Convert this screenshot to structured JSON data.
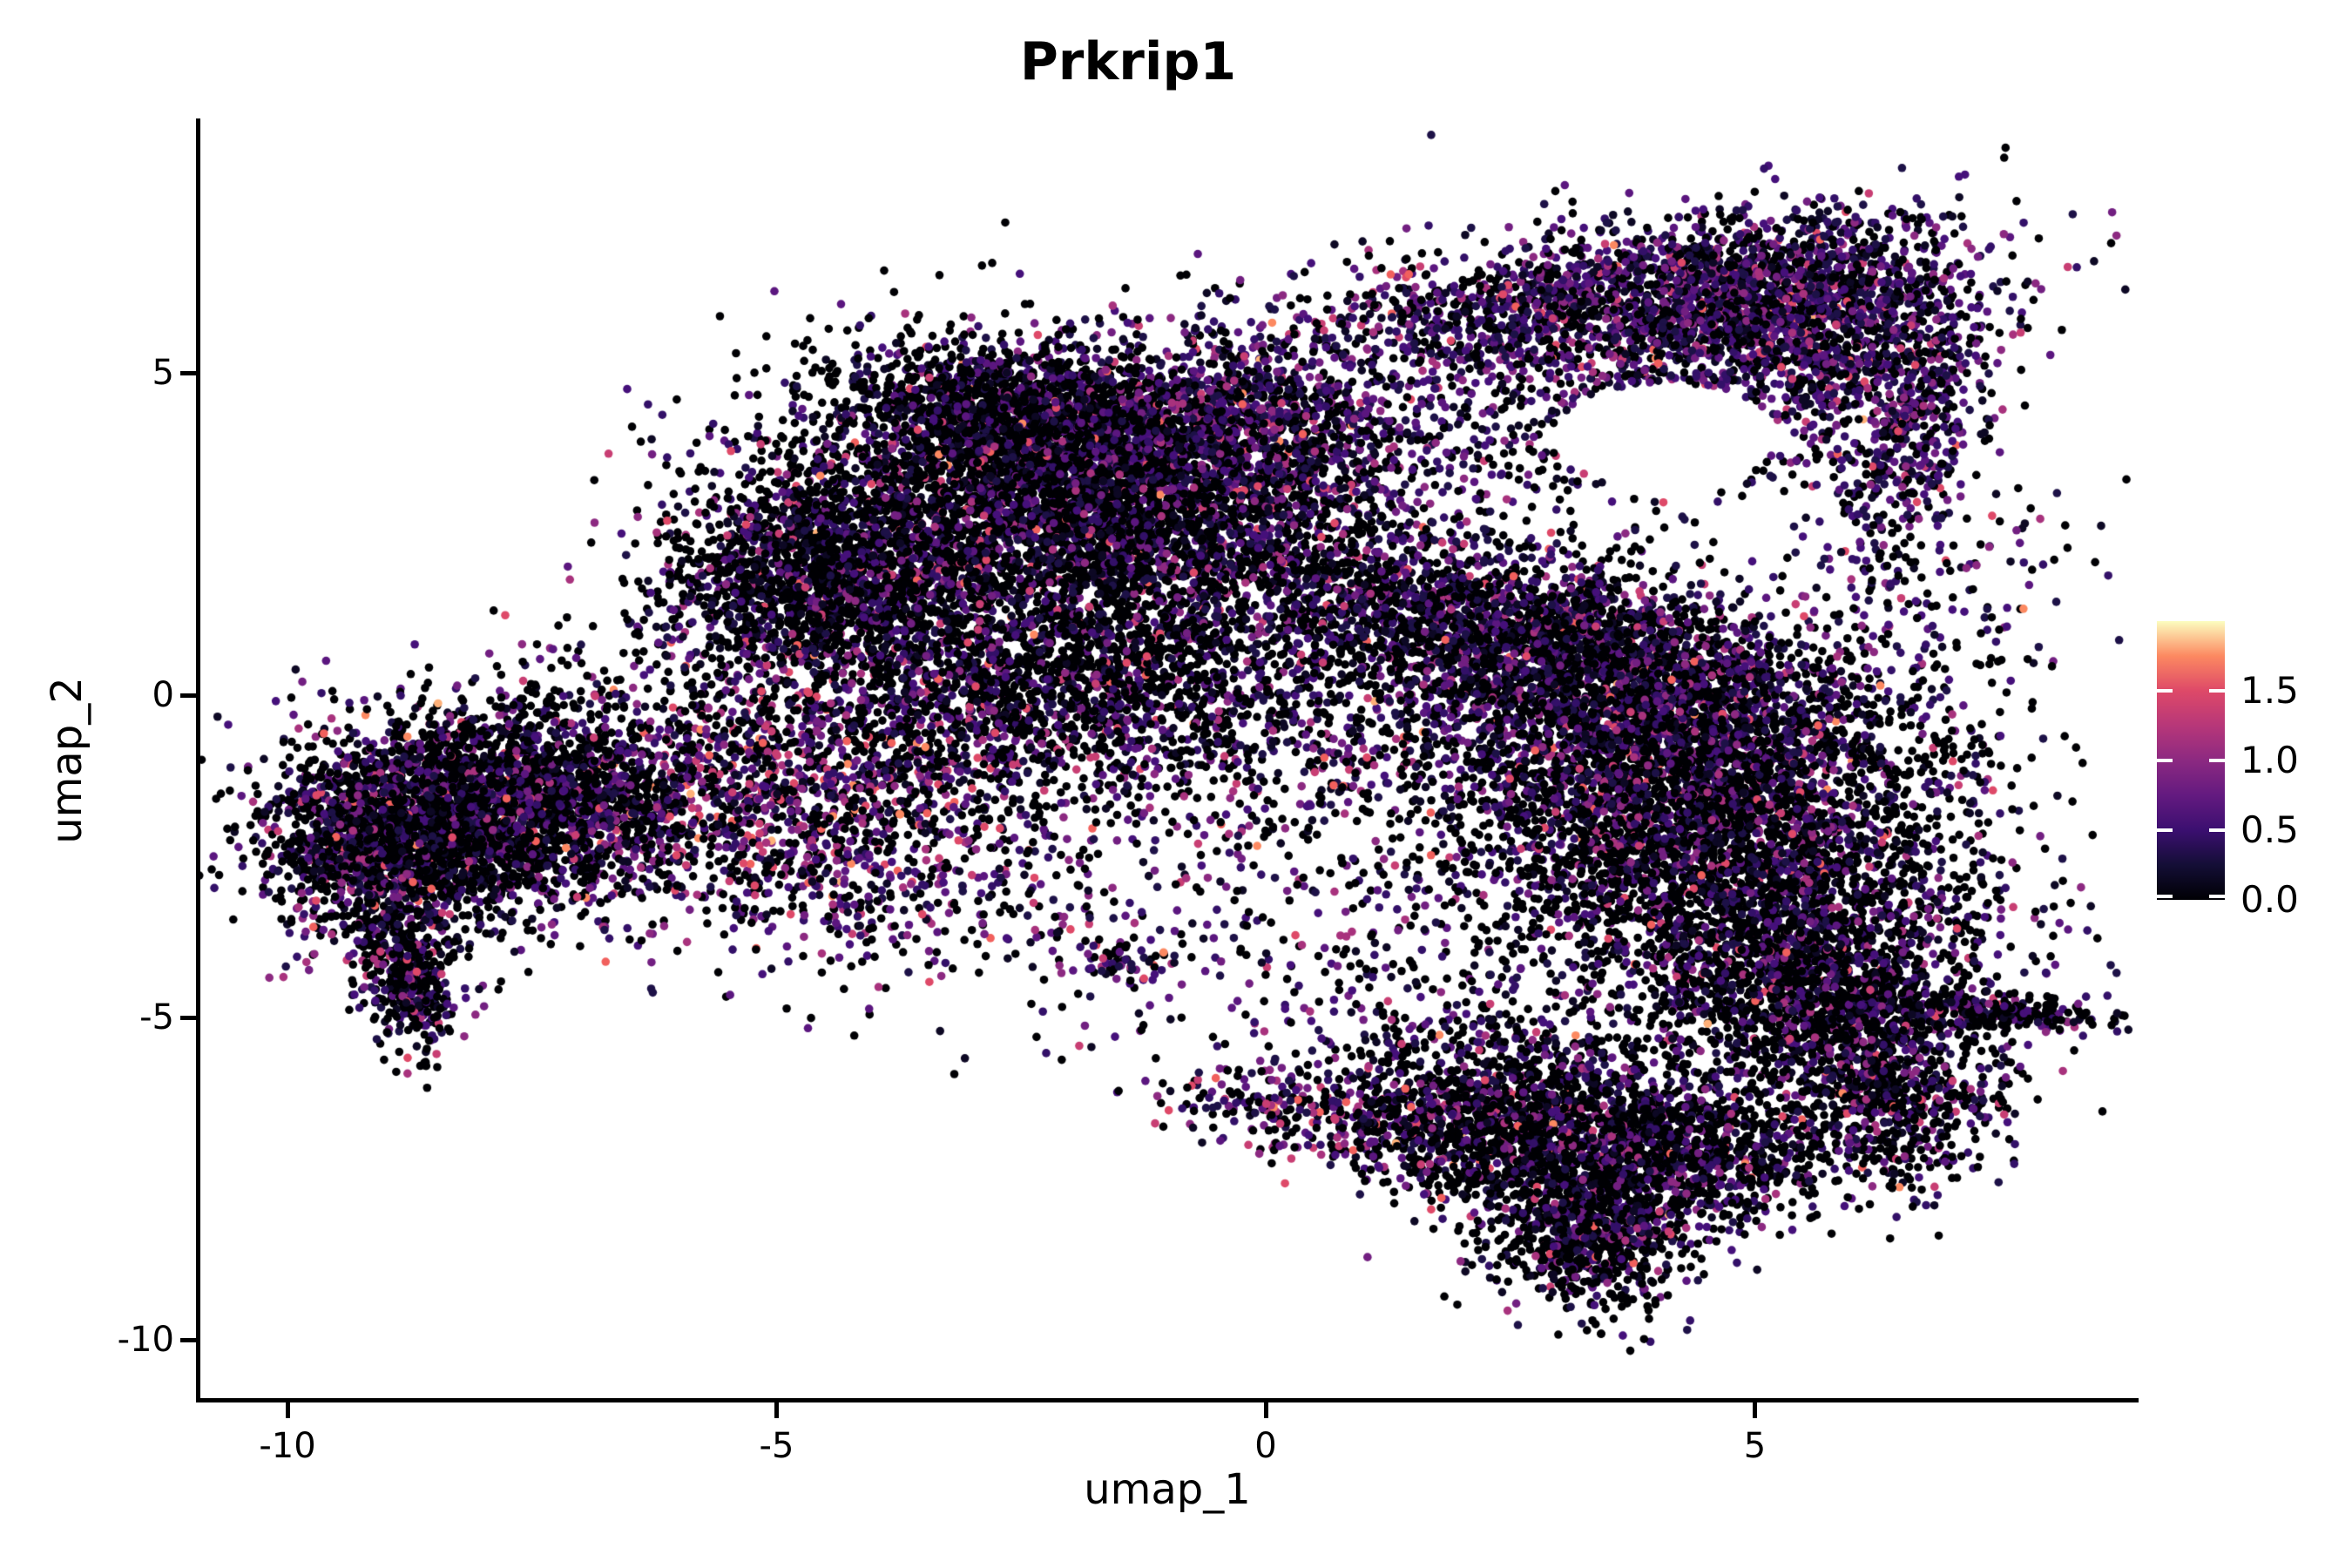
{
  "figure": {
    "background": "#ffffff"
  },
  "chart_data": {
    "type": "scatter",
    "title": "Prkrip1",
    "xlabel": "umap_1",
    "ylabel": "umap_2",
    "x_ticks": [
      -10,
      -5,
      0,
      5
    ],
    "y_ticks": [
      5,
      0,
      -5,
      -10
    ],
    "xlim": [
      -10.91,
      8.9
    ],
    "ylim": [
      -10.91,
      8.92
    ],
    "grid": false,
    "axis_color": "#000000",
    "point_radius_px": 4.8,
    "n_points": 35920,
    "generation": "seeded-gaussian-mixture",
    "seed": 42,
    "colormap": {
      "name": "magma",
      "domain": [
        0,
        2
      ],
      "stops": [
        [
          0.0,
          "#000004"
        ],
        [
          0.125,
          "#140e36"
        ],
        [
          0.25,
          "#3b0f70"
        ],
        [
          0.375,
          "#641a80"
        ],
        [
          0.5,
          "#8c2981"
        ],
        [
          0.625,
          "#b73779"
        ],
        [
          0.75,
          "#de4968"
        ],
        [
          0.875,
          "#fc8961"
        ],
        [
          1.0,
          "#fcfdbf"
        ]
      ]
    },
    "legend": {
      "position": "right",
      "ticks": [
        0.0,
        0.5,
        1.0,
        1.5
      ],
      "tick_labels": [
        "0.0",
        "0.5",
        "1.0",
        "1.5"
      ]
    },
    "color_bins": {
      "values": [
        0,
        0.08,
        0.18,
        0.3,
        0.4,
        0.5,
        0.6,
        0.75,
        0.9,
        1.05,
        1.2,
        1.4,
        1.6,
        1.75
      ],
      "colors": [
        "#000004",
        "#0d0824",
        "#1d1147",
        "#331068",
        "#45107a",
        "#5b167f",
        "#721f81",
        "#8c2981",
        "#a8327d",
        "#c83e73",
        "#de4968",
        "#f1605d",
        "#fc8961",
        "#feb078"
      ]
    },
    "mixes": {
      "dark": [
        60,
        8,
        7,
        6,
        5,
        4,
        3,
        2.5,
        1.8,
        1.2,
        0.7,
        0.4,
        0.15,
        0.05
      ],
      "dark2": [
        52,
        9,
        9,
        8,
        6,
        5,
        4,
        3,
        2,
        1.4,
        0.8,
        0.45,
        0.2,
        0.08
      ],
      "purple": [
        34,
        10,
        11,
        11,
        9,
        8,
        6,
        4.5,
        3,
        1.8,
        0.9,
        0.5,
        0.2,
        0.08
      ],
      "pinkish": [
        40,
        7,
        8,
        8,
        7,
        7,
        6,
        5.5,
        5,
        3.5,
        2.5,
        1.5,
        0.8,
        0.3
      ]
    },
    "holes": [
      [
        4.1,
        4.05,
        1.15,
        0.8
      ]
    ],
    "clusters": [
      {
        "name": "main-core",
        "c": [
          -2.1,
          2.9
        ],
        "sd": [
          1.45,
          1.05
        ],
        "rot": -15,
        "n": 4200,
        "mix": "dark",
        "holes": false
      },
      {
        "name": "main-apex",
        "c": [
          -2.3,
          4.35
        ],
        "sd": [
          1.0,
          0.5
        ],
        "rot": -12,
        "n": 1400,
        "mix": "dark",
        "holes": false
      },
      {
        "name": "main-left",
        "c": [
          -4.6,
          1.9
        ],
        "sd": [
          0.8,
          0.85
        ],
        "rot": 20,
        "n": 1500,
        "mix": "dark",
        "holes": false
      },
      {
        "name": "main-lower",
        "c": [
          -2.3,
          0.2
        ],
        "sd": [
          1.7,
          0.95
        ],
        "rot": -8,
        "n": 2300,
        "mix": "dark",
        "holes": false
      },
      {
        "name": "main-shoulder",
        "c": [
          -0.2,
          4.0
        ],
        "sd": [
          0.95,
          0.8
        ],
        "rot": -25,
        "n": 1400,
        "mix": "purple",
        "holes": true
      },
      {
        "name": "wing-arc",
        "c": [
          3.6,
          6.2
        ],
        "sd": [
          1.7,
          0.55
        ],
        "rot": 10,
        "n": 1700,
        "mix": "purple",
        "holes": true
      },
      {
        "name": "wing-dome",
        "c": [
          5.5,
          5.85
        ],
        "sd": [
          0.9,
          0.8
        ],
        "rot": 0,
        "n": 1400,
        "mix": "purple",
        "holes": true
      },
      {
        "name": "wing-strand",
        "c": [
          6.6,
          4.0
        ],
        "sd": [
          0.32,
          1.05
        ],
        "rot": -12,
        "n": 420,
        "mix": "purple",
        "holes": false
      },
      {
        "name": "wing-under",
        "c": [
          3.9,
          4.55
        ],
        "sd": [
          1.5,
          0.85
        ],
        "rot": 5,
        "n": 850,
        "mix": "purple",
        "holes": true
      },
      {
        "name": "neck-band",
        "c": [
          2.6,
          1.0
        ],
        "sd": [
          1.6,
          0.62
        ],
        "rot": -20,
        "n": 2300,
        "mix": "dark2",
        "holes": true
      },
      {
        "name": "right-upper",
        "c": [
          4.0,
          -0.6
        ],
        "sd": [
          1.55,
          0.95
        ],
        "rot": -15,
        "n": 2800,
        "mix": "dark2",
        "holes": false
      },
      {
        "name": "right-mid",
        "c": [
          4.6,
          -2.6
        ],
        "sd": [
          1.35,
          1.05
        ],
        "rot": -10,
        "n": 2600,
        "mix": "dark",
        "holes": false
      },
      {
        "name": "right-low",
        "c": [
          5.6,
          -4.6
        ],
        "sd": [
          0.95,
          0.8
        ],
        "rot": -20,
        "n": 1600,
        "mix": "dark",
        "holes": false
      },
      {
        "name": "right-bottom",
        "c": [
          6.3,
          -6.3
        ],
        "sd": [
          0.6,
          0.7
        ],
        "rot": 0,
        "n": 700,
        "mix": "dark",
        "holes": false
      },
      {
        "name": "right-tail",
        "c": [
          7.2,
          -4.9
        ],
        "sd": [
          0.7,
          0.13
        ],
        "rot": -6,
        "n": 320,
        "mix": "dark",
        "holes": false
      },
      {
        "name": "bottom-arm",
        "c": [
          0.8,
          -6.5
        ],
        "sd": [
          0.9,
          0.4
        ],
        "rot": -10,
        "n": 380,
        "mix": "pinkish",
        "holes": false
      },
      {
        "name": "bottom-main",
        "c": [
          2.6,
          -6.6
        ],
        "sd": [
          0.85,
          0.7
        ],
        "rot": -15,
        "n": 1500,
        "mix": "dark",
        "holes": false
      },
      {
        "name": "bottom-lobe",
        "c": [
          3.3,
          -8.3
        ],
        "sd": [
          0.5,
          0.58
        ],
        "rot": 10,
        "n": 800,
        "mix": "dark",
        "holes": false
      },
      {
        "name": "bottom-right",
        "c": [
          4.3,
          -7.1
        ],
        "sd": [
          0.7,
          0.58
        ],
        "rot": -20,
        "n": 900,
        "mix": "dark",
        "holes": false
      },
      {
        "name": "left-core",
        "c": [
          -8.6,
          -2.1
        ],
        "sd": [
          0.8,
          0.78
        ],
        "rot": -30,
        "n": 2300,
        "mix": "dark",
        "holes": false
      },
      {
        "name": "left-right",
        "c": [
          -7.3,
          -1.5
        ],
        "sd": [
          0.9,
          0.68
        ],
        "rot": -20,
        "n": 1300,
        "mix": "dark",
        "holes": false
      },
      {
        "name": "left-tail",
        "c": [
          -8.75,
          -4.3
        ],
        "sd": [
          0.28,
          0.62
        ],
        "rot": 8,
        "n": 450,
        "mix": "dark",
        "holes": false
      },
      {
        "name": "left-edge",
        "c": [
          -9.3,
          -2.4
        ],
        "sd": [
          0.35,
          0.8
        ],
        "rot": -10,
        "n": 280,
        "mix": "pinkish",
        "holes": false
      },
      {
        "name": "bridge",
        "c": [
          -5.0,
          -1.6
        ],
        "sd": [
          1.4,
          1.05
        ],
        "rot": -15,
        "n": 1500,
        "mix": "pinkish",
        "holes": false
      },
      {
        "name": "mid-sparse-low",
        "c": [
          -3.3,
          -3.1
        ],
        "sd": [
          1.6,
          0.9
        ],
        "rot": 0,
        "n": 260,
        "mix": "pinkish",
        "holes": false
      },
      {
        "name": "gap-sparse",
        "c": [
          0.3,
          -1.6
        ],
        "sd": [
          1.2,
          1.4
        ],
        "rot": 0,
        "n": 300,
        "mix": "purple",
        "holes": false
      },
      {
        "name": "below-sparse",
        "c": [
          1.2,
          -4.6
        ],
        "sd": [
          1.3,
          0.85
        ],
        "rot": 0,
        "n": 230,
        "mix": "purple",
        "holes": false
      },
      {
        "name": "right-of-neck",
        "c": [
          6.9,
          1.3
        ],
        "sd": [
          0.8,
          1.1
        ],
        "rot": 0,
        "n": 170,
        "mix": "purple",
        "holes": false
      },
      {
        "name": "tiny-clump",
        "c": [
          -1.5,
          -4.15
        ],
        "sd": [
          0.24,
          0.18
        ],
        "rot": 0,
        "n": 60,
        "mix": "pinkish",
        "holes": false
      }
    ]
  }
}
